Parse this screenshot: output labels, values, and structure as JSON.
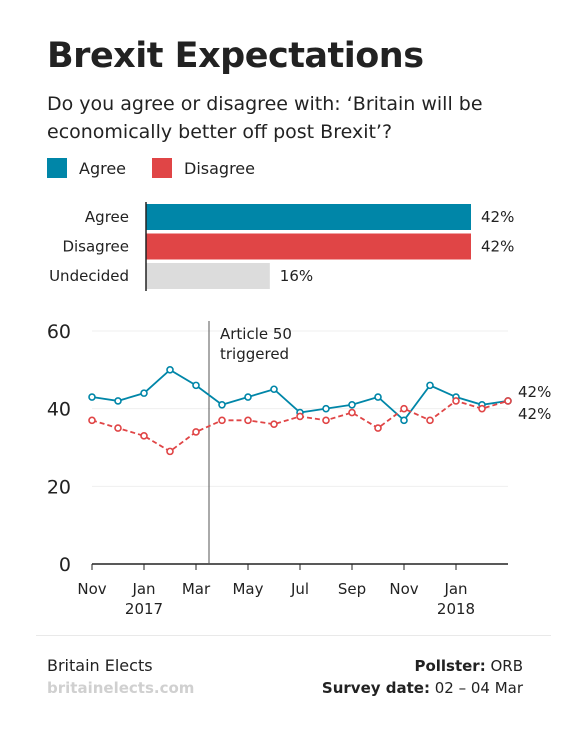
{
  "title": "Brexit Expectations",
  "subtitle": "Do you agree or disagree with: ‘Britain will be economically better off post Brexit’?",
  "legend": [
    {
      "label": "Agree",
      "color": "#0086a8"
    },
    {
      "label": "Disagree",
      "color": "#e04546"
    }
  ],
  "footer": {
    "source": "Britain Elects",
    "site": "britainelects.com",
    "pollster_label": "Pollster:",
    "pollster_value": " ORB",
    "date_label": "Survey date:",
    "date_value": " 02 – 04 Mar"
  },
  "chart_data": [
    {
      "type": "bar",
      "orientation": "horizontal",
      "categories": [
        "Agree",
        "Disagree",
        "Undecided"
      ],
      "values": [
        42,
        42,
        16
      ],
      "value_labels": [
        "42%",
        "42%",
        "16%"
      ],
      "colors": [
        "#0086a8",
        "#e04546",
        "#dcdcdc"
      ],
      "xlim": [
        0,
        42
      ]
    },
    {
      "type": "line",
      "x": [
        "2016-11",
        "2016-12",
        "2017-01",
        "2017-02",
        "2017-03",
        "2017-04",
        "2017-05",
        "2017-06",
        "2017-07",
        "2017-08",
        "2017-09",
        "2017-10",
        "2017-11",
        "2017-12",
        "2018-01",
        "2018-02",
        "2018-03"
      ],
      "ylim": [
        0,
        60
      ],
      "yticks": [
        0,
        20,
        40,
        60
      ],
      "xtick_labels": [
        {
          "label": "Nov",
          "sub": "",
          "month": 0
        },
        {
          "label": "Jan",
          "sub": "2017",
          "month": 2
        },
        {
          "label": "Mar",
          "sub": "",
          "month": 4
        },
        {
          "label": "May",
          "sub": "",
          "month": 6
        },
        {
          "label": "Jul",
          "sub": "",
          "month": 8
        },
        {
          "label": "Sep",
          "sub": "",
          "month": 10
        },
        {
          "label": "Nov",
          "sub": "",
          "month": 12
        },
        {
          "label": "Jan",
          "sub": "2018",
          "month": 14
        }
      ],
      "series": [
        {
          "name": "Agree",
          "color": "#0086a8",
          "dash": false,
          "points": [
            [
              0,
              43
            ],
            [
              0.5,
              42
            ],
            [
              1,
              44
            ],
            [
              1.5,
              50
            ],
            [
              2,
              46
            ],
            [
              2.5,
              41
            ],
            [
              3,
              43
            ],
            [
              3.5,
              45
            ],
            [
              4,
              39
            ],
            [
              4.5,
              40
            ],
            [
              5,
              41
            ],
            [
              5.5,
              43
            ],
            [
              6,
              37
            ],
            [
              6.5,
              46
            ],
            [
              7,
              43
            ],
            [
              7.5,
              41
            ],
            [
              8,
              42
            ]
          ],
          "end_label": "42%"
        },
        {
          "name": "Disagree",
          "color": "#e04546",
          "dash": true,
          "points": [
            [
              0,
              37
            ],
            [
              0.5,
              35
            ],
            [
              1,
              33
            ],
            [
              1.5,
              29
            ],
            [
              2,
              34
            ],
            [
              2.5,
              37
            ],
            [
              3,
              37
            ],
            [
              3.5,
              36
            ],
            [
              4,
              38
            ],
            [
              4.5,
              37
            ],
            [
              5,
              39
            ],
            [
              5.5,
              35
            ],
            [
              6,
              40
            ],
            [
              6.5,
              37
            ],
            [
              7,
              42
            ],
            [
              7.5,
              40
            ],
            [
              8,
              42
            ]
          ],
          "end_label": "42%"
        }
      ],
      "annotation": {
        "lines": [
          "Article 50",
          "triggered"
        ],
        "at": 2.25
      }
    }
  ]
}
